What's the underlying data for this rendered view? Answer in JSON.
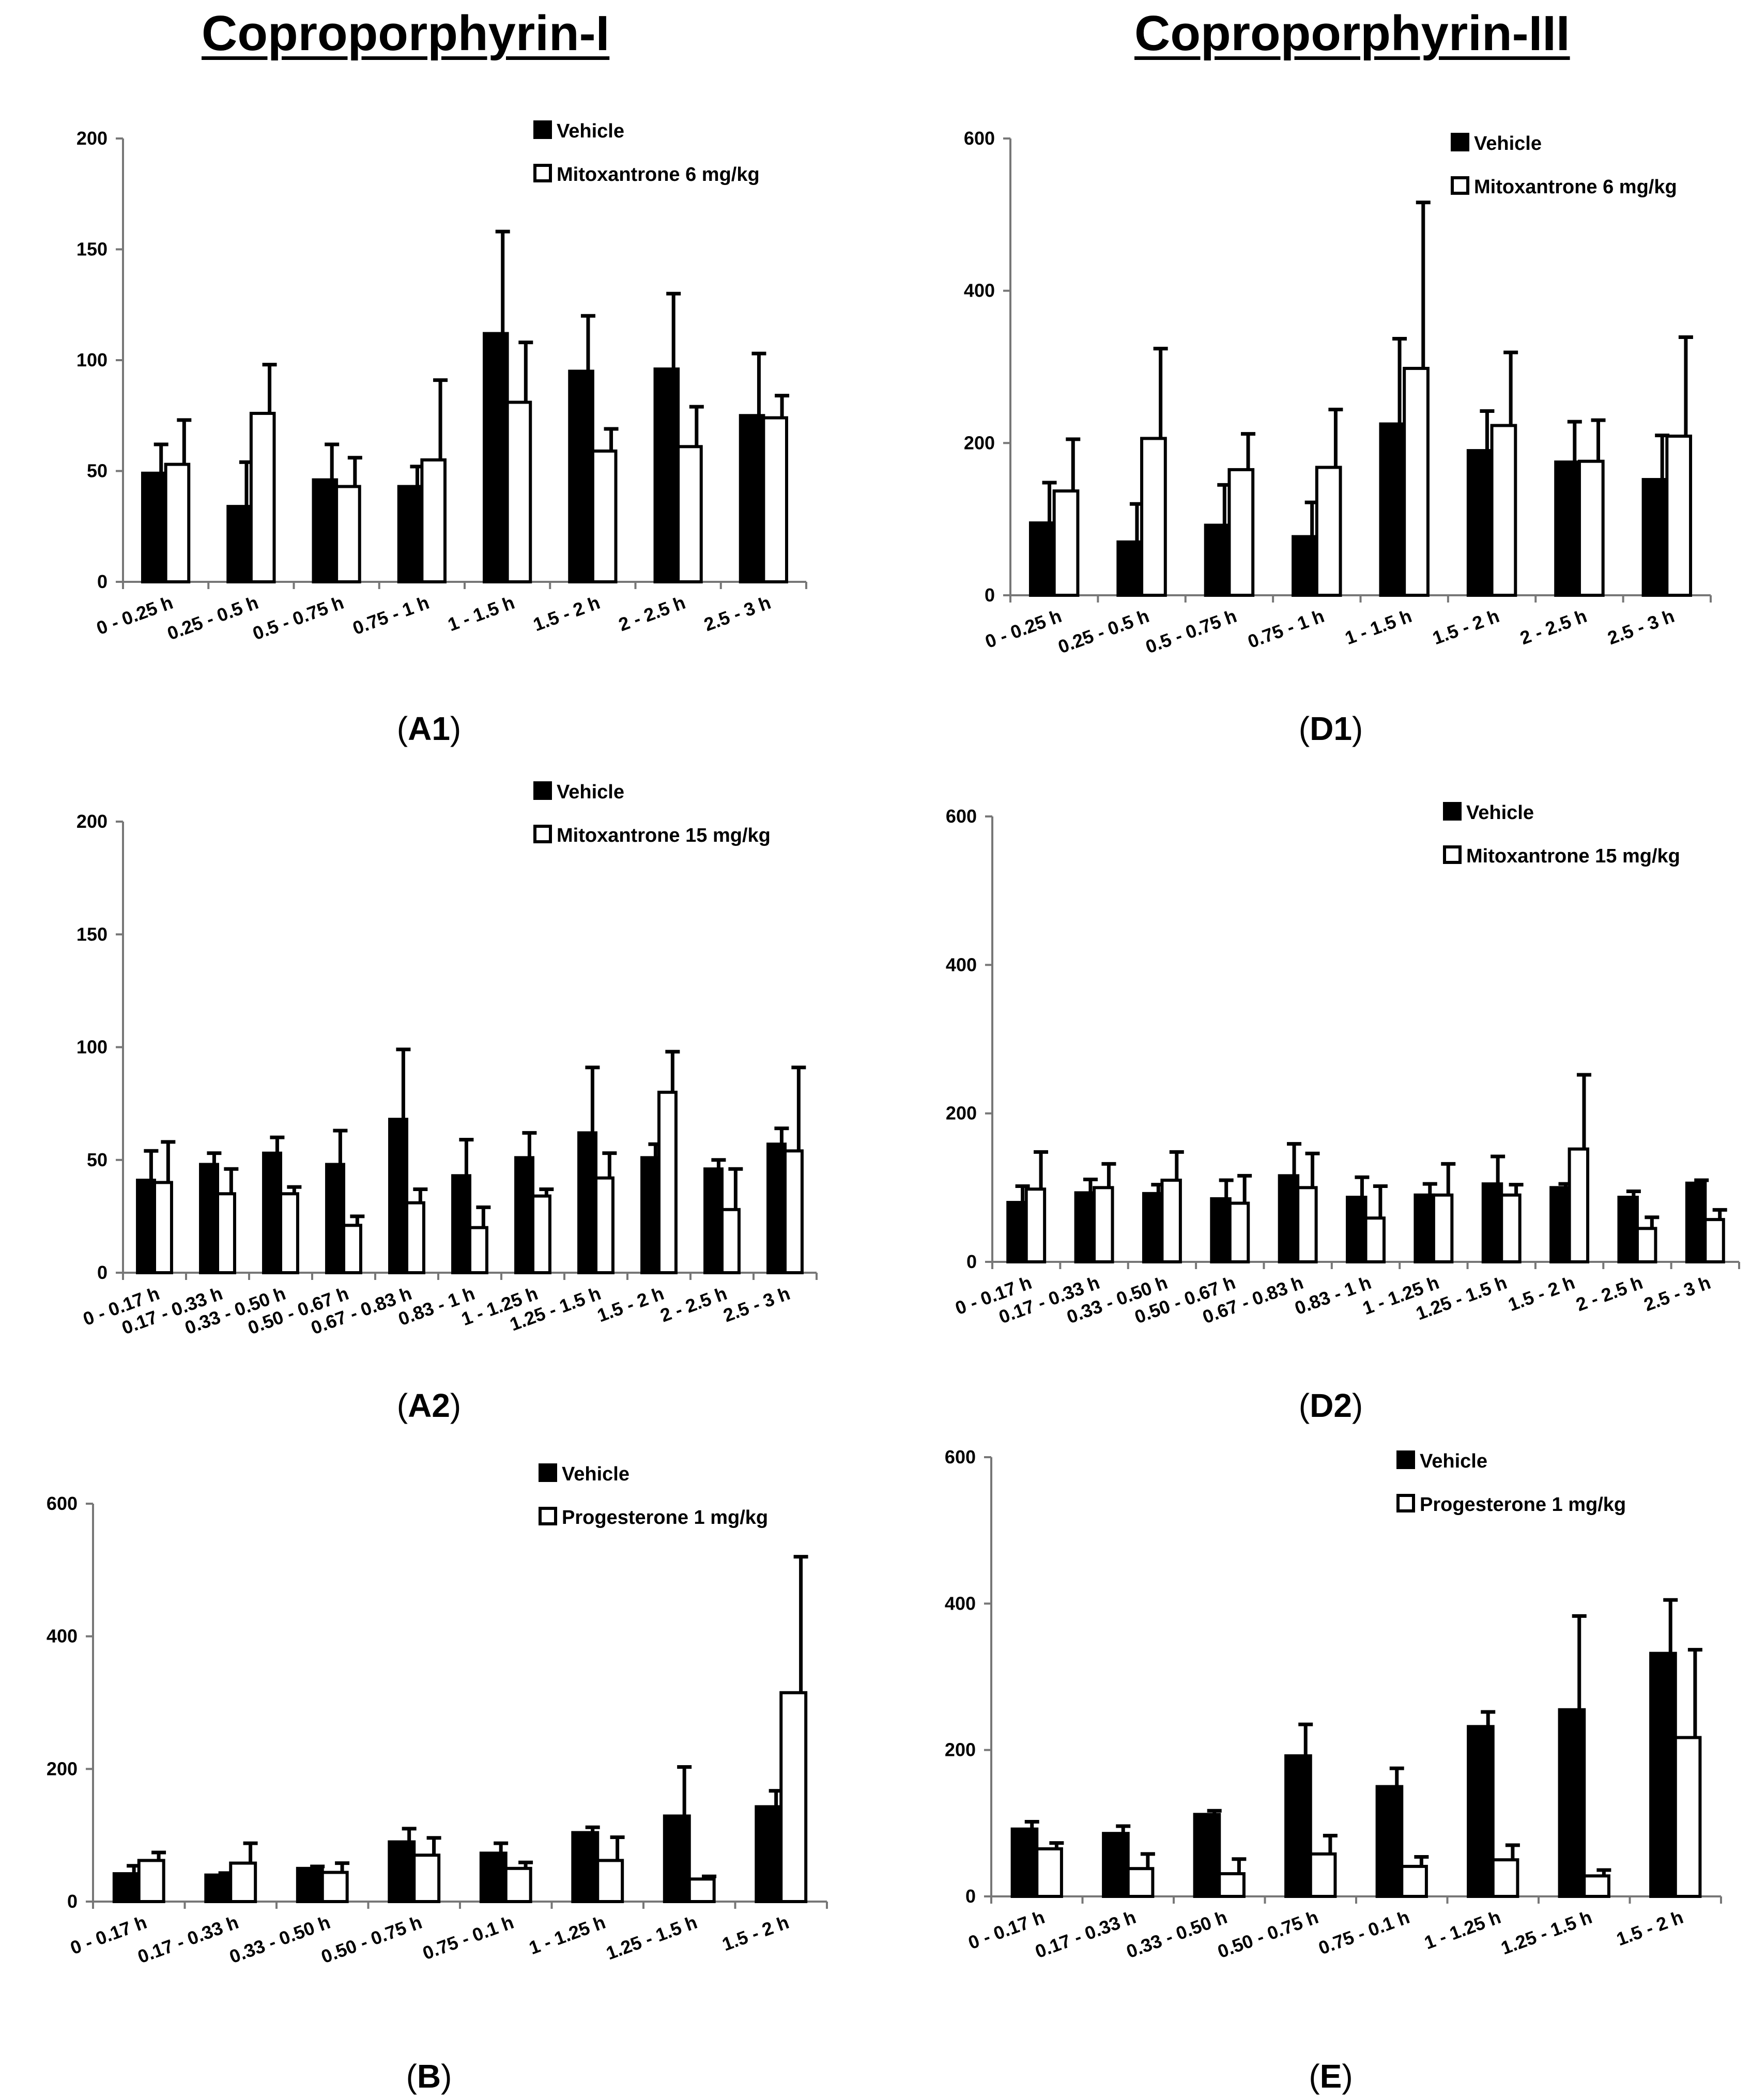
{
  "titles": {
    "left": "Coproporphyrin-I",
    "right": "Coproporphyrin-III"
  },
  "colors": {
    "vehicle": "#000000",
    "treatment": "#ffffff",
    "axis": "#777777",
    "error": "#000000"
  },
  "chart_data": [
    {
      "id": "A1",
      "type": "bar",
      "panel_label": "A1",
      "ylim": [
        0,
        200
      ],
      "yticks": [
        0,
        50,
        100,
        150,
        200
      ],
      "categories": [
        "0 - 0.25 h",
        "0.25 - 0.5 h",
        "0.5 - 0.75 h",
        "0.75 - 1 h",
        "1 - 1.5 h",
        "1.5 - 2 h",
        "2 - 2.5 h",
        "2.5 - 3 h"
      ],
      "series": [
        {
          "name": "Vehicle",
          "values": [
            49,
            34,
            46,
            43,
            112,
            95,
            96,
            75
          ],
          "errors": [
            13,
            20,
            16,
            9,
            46,
            25,
            34,
            28
          ]
        },
        {
          "name": "Mitoxantrone 6 mg/kg",
          "values": [
            53,
            76,
            43,
            55,
            81,
            59,
            61,
            74
          ],
          "errors": [
            20,
            22,
            13,
            36,
            27,
            10,
            18,
            10
          ]
        }
      ]
    },
    {
      "id": "D1",
      "type": "bar",
      "panel_label": "D1",
      "ylim": [
        0,
        600
      ],
      "yticks": [
        0,
        200,
        400,
        600
      ],
      "categories": [
        "0 - 0.25 h",
        "0.25 - 0.5 h",
        "0.5 - 0.75 h",
        "0.75 - 1 h",
        "1 - 1.5 h",
        "1.5 - 2 h",
        "2 - 2.5 h",
        "2.5 - 3 h"
      ],
      "series": [
        {
          "name": "Vehicle",
          "values": [
            95,
            70,
            92,
            77,
            225,
            190,
            175,
            152
          ],
          "errors": [
            53,
            50,
            53,
            45,
            112,
            52,
            53,
            58
          ]
        },
        {
          "name": "Mitoxantrone 6 mg/kg",
          "values": [
            137,
            206,
            165,
            168,
            298,
            223,
            176,
            209
          ],
          "errors": [
            68,
            118,
            47,
            76,
            218,
            96,
            54,
            130
          ]
        }
      ]
    },
    {
      "id": "A2",
      "type": "bar",
      "panel_label": "A2",
      "ylim": [
        0,
        200
      ],
      "yticks": [
        0,
        50,
        100,
        150,
        200
      ],
      "categories": [
        "0 - 0.17 h",
        "0.17 - 0.33 h",
        "0.33 - 0.50 h",
        "0.50 - 0.67 h",
        "0.67 - 0.83 h",
        "0.83 - 1 h",
        "1 - 1.25 h",
        "1.25 - 1.5 h",
        "1.5 - 2 h",
        "2 - 2.5 h",
        "2.5 - 3 h"
      ],
      "series": [
        {
          "name": "Vehicle",
          "values": [
            41,
            48,
            53,
            48,
            68,
            43,
            51,
            62,
            51,
            46,
            57
          ],
          "errors": [
            13,
            5,
            7,
            15,
            31,
            16,
            11,
            29,
            6,
            4,
            7
          ]
        },
        {
          "name": "Mitoxantrone 15 mg/kg",
          "values": [
            40,
            35,
            35,
            21,
            31,
            20,
            34,
            42,
            80,
            28,
            54
          ],
          "errors": [
            18,
            11,
            3,
            4,
            6,
            9,
            3,
            11,
            18,
            18,
            37
          ]
        }
      ]
    },
    {
      "id": "D2",
      "type": "bar",
      "panel_label": "D2",
      "ylim": [
        0,
        600
      ],
      "yticks": [
        0,
        200,
        400,
        600
      ],
      "categories": [
        "0 - 0.17 h",
        "0.17 - 0.33 h",
        "0.33 - 0.50 h",
        "0.50 - 0.67 h",
        "0.67 - 0.83 h",
        "0.83 - 1 h",
        "1 - 1.25 h",
        "1.25 - 1.5 h",
        "1.5 - 2 h",
        "2 - 2.5 h",
        "2.5 - 3 h"
      ],
      "series": [
        {
          "name": "Vehicle",
          "values": [
            80,
            93,
            92,
            85,
            116,
            87,
            90,
            105,
            100,
            87,
            106
          ],
          "errors": [
            22,
            18,
            12,
            25,
            43,
            27,
            15,
            37,
            5,
            8,
            4
          ]
        },
        {
          "name": "Mitoxantrone 15 mg/kg",
          "values": [
            98,
            100,
            110,
            79,
            100,
            59,
            90,
            90,
            152,
            45,
            57
          ],
          "errors": [
            50,
            32,
            38,
            37,
            46,
            43,
            42,
            14,
            100,
            15,
            13
          ]
        }
      ]
    },
    {
      "id": "B",
      "type": "bar",
      "panel_label": "B",
      "ylim": [
        0,
        600
      ],
      "yticks": [
        0,
        200,
        400,
        600
      ],
      "categories": [
        "0 - 0.17 h",
        "0.17 - 0.33 h",
        "0.33 - 0.50 h",
        "0.50 - 0.75 h",
        "0.75 - 0.1 h",
        "1 - 1.25 h",
        "1.25 - 1.5 h",
        "1.5 - 2 h"
      ],
      "series": [
        {
          "name": "Vehicle",
          "values": [
            42,
            40,
            50,
            90,
            73,
            104,
            129,
            143
          ],
          "errors": [
            12,
            3,
            3,
            20,
            15,
            8,
            74,
            24
          ]
        },
        {
          "name": "Progesterone 1 mg/kg",
          "values": [
            62,
            58,
            44,
            70,
            50,
            62,
            34,
            315
          ],
          "errors": [
            12,
            30,
            14,
            26,
            9,
            35,
            4,
            205
          ]
        }
      ]
    },
    {
      "id": "E",
      "type": "bar",
      "panel_label": "E",
      "ylim": [
        0,
        600
      ],
      "yticks": [
        0,
        200,
        400,
        600
      ],
      "categories": [
        "0 - 0.17 h",
        "0.17 - 0.33 h",
        "0.33 - 0.50 h",
        "0.50 - 0.75 h",
        "0.75 - 0.1 h",
        "1 - 1.25 h",
        "1.25 - 1.5 h",
        "1.5 - 2 h"
      ],
      "series": [
        {
          "name": "Vehicle",
          "values": [
            92,
            86,
            112,
            192,
            150,
            232,
            255,
            332
          ],
          "errors": [
            10,
            10,
            5,
            43,
            25,
            20,
            128,
            73
          ]
        },
        {
          "name": "Progesterone 1 mg/kg",
          "values": [
            65,
            38,
            31,
            58,
            41,
            50,
            28,
            217
          ],
          "errors": [
            8,
            20,
            20,
            25,
            13,
            20,
            8,
            120
          ]
        }
      ]
    }
  ]
}
